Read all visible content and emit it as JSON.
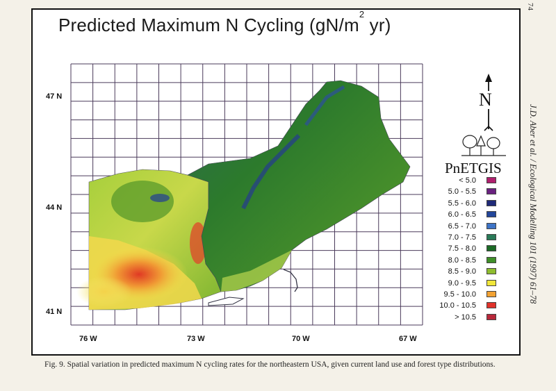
{
  "page_number": "74",
  "side_citation": "J.D. Aber et al. / Ecological Modelling 101 (1997) 61–78",
  "figure": {
    "title_main": "Predicted Maximum N Cycling  (gN/m",
    "title_sup": "2",
    "title_end": " yr)",
    "latitudes": [
      "47 N",
      "44 N",
      "41 N"
    ],
    "longitudes": [
      "76 W",
      "73 W",
      "70 W",
      "67 W"
    ],
    "north_arrow_label": "N",
    "brand": "PnETGIS",
    "legend": [
      {
        "label": "< 5.0",
        "color": "#b0206e"
      },
      {
        "label": "5.0 - 5.5",
        "color": "#6a2280"
      },
      {
        "label": "5.5 - 6.0",
        "color": "#1f2a78"
      },
      {
        "label": "6.0 - 6.5",
        "color": "#23469a"
      },
      {
        "label": "6.5 - 7.0",
        "color": "#3e74c6"
      },
      {
        "label": "7.0 - 7.5",
        "color": "#2a7a58"
      },
      {
        "label": "7.5 - 8.0",
        "color": "#1c6a26"
      },
      {
        "label": "8.0 - 8.5",
        "color": "#3f8f28"
      },
      {
        "label": "8.5 - 9.0",
        "color": "#8fbd2f"
      },
      {
        "label": "9.0 - 9.5",
        "color": "#f0e63a"
      },
      {
        "label": "9.5 - 10.0",
        "color": "#f2a233"
      },
      {
        "label": "10.0 - 10.5",
        "color": "#e0322a"
      },
      {
        "label": "> 10.5",
        "color": "#b8283a"
      }
    ]
  },
  "caption": "Fig. 9. Spatial variation in predicted maximum N cycling rates for the northeastern USA, given current land use and forest type distributions."
}
